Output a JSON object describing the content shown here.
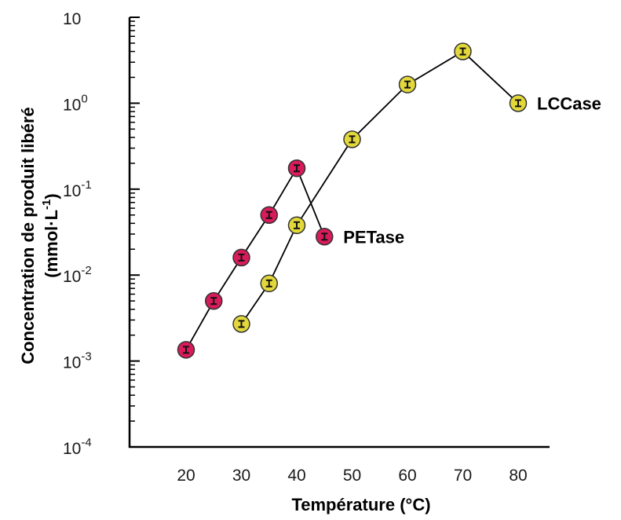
{
  "chart_data": {
    "type": "scatter",
    "title": "",
    "xlabel": "Température (°C)",
    "ylabel_line1": "Concentration de produit libéré",
    "ylabel_line2_prefix": "(mmol·L",
    "ylabel_line2_sup": "-1",
    "ylabel_line2_suffix": ")",
    "xlim": [
      10,
      85
    ],
    "ylim_log10": [
      -4,
      1
    ],
    "yscale": "log",
    "grid": false,
    "x_ticks": [
      20,
      30,
      40,
      50,
      60,
      70,
      80
    ],
    "y_ticks": [
      {
        "exp": 1,
        "base": "10",
        "sup": ""
      },
      {
        "exp": 0,
        "base": "10",
        "sup": "0"
      },
      {
        "exp": -1,
        "base": "10",
        "sup": "-1"
      },
      {
        "exp": -2,
        "base": "10",
        "sup": "-2"
      },
      {
        "exp": -3,
        "base": "10",
        "sup": "-3"
      },
      {
        "exp": -4,
        "base": "10",
        "sup": "-4"
      }
    ],
    "series": [
      {
        "name": "PETase",
        "color": "#d81b5a",
        "x": [
          20,
          25,
          30,
          35,
          40,
          45
        ],
        "y": [
          0.00135,
          0.005,
          0.016,
          0.05,
          0.175,
          0.028
        ]
      },
      {
        "name": "LCCase",
        "color": "#e3d83a",
        "x": [
          30,
          35,
          40,
          50,
          60,
          70,
          80
        ],
        "y": [
          0.0027,
          0.008,
          0.038,
          0.38,
          1.65,
          4.0,
          1.0
        ]
      }
    ]
  }
}
